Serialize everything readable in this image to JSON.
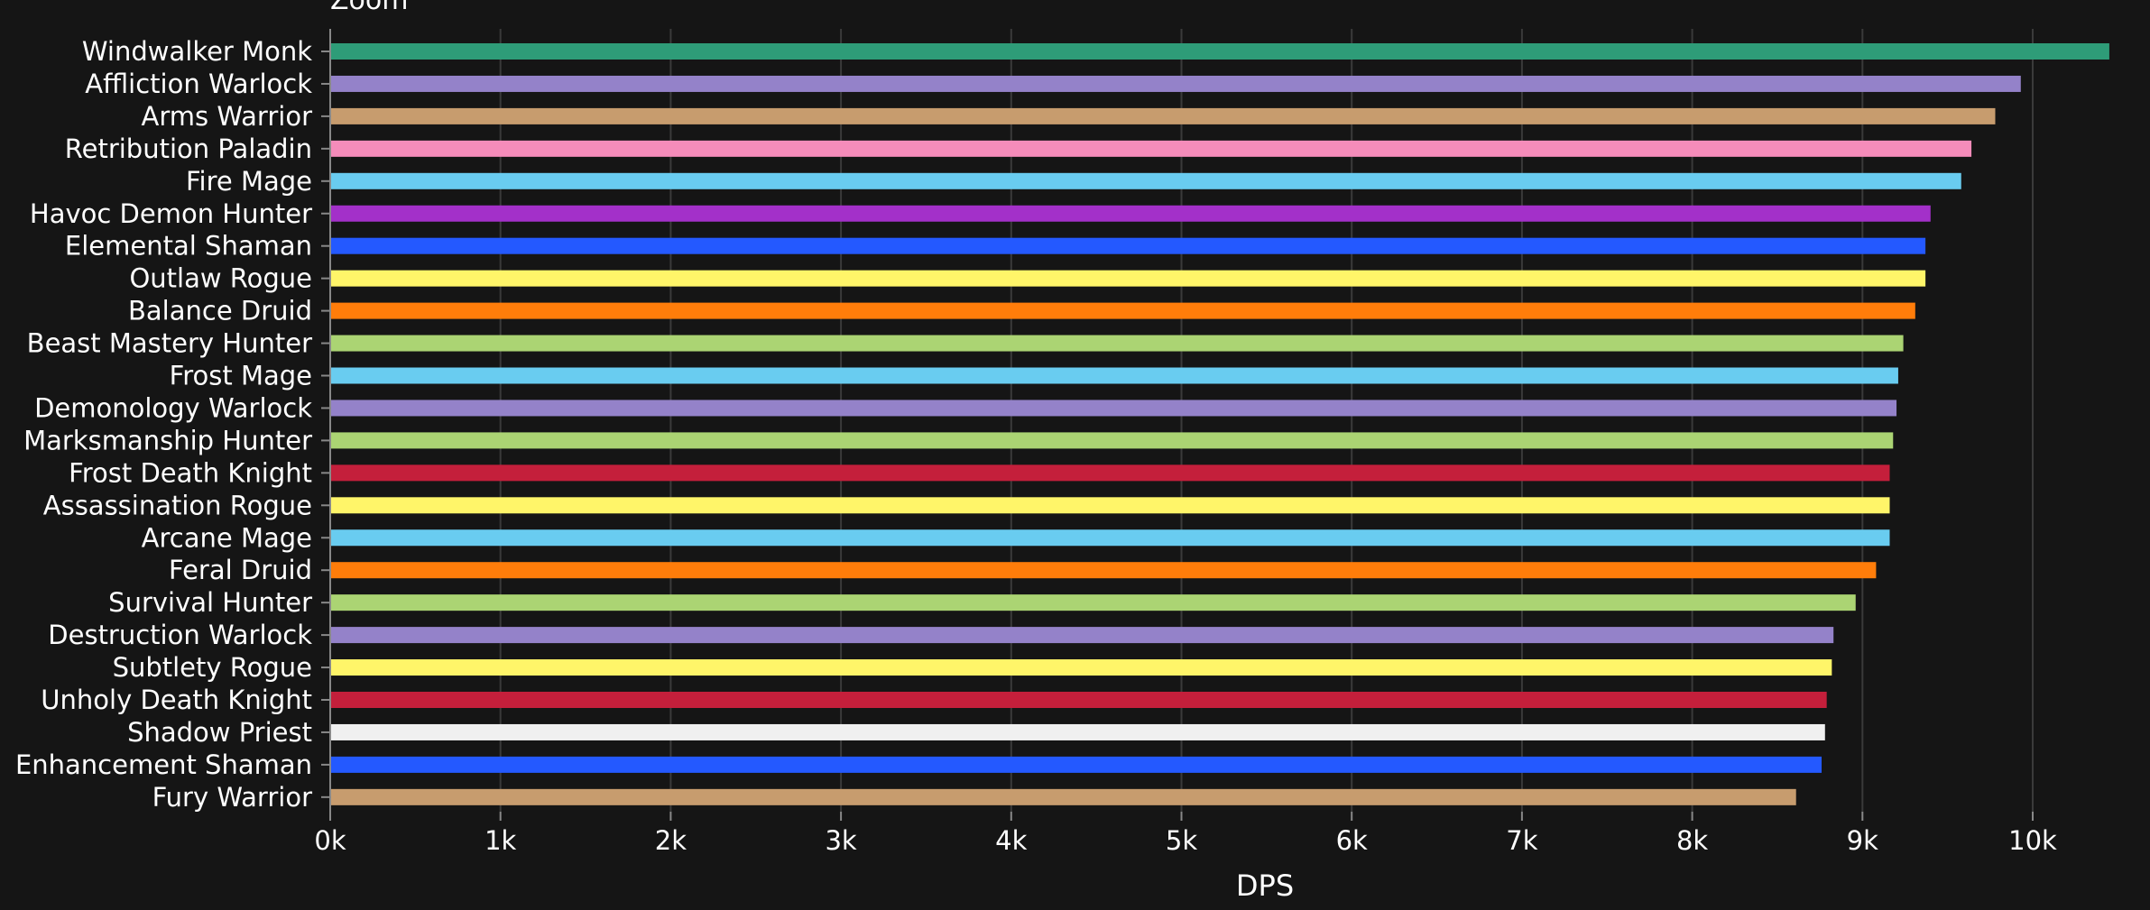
{
  "header": {
    "zoom_label": "Zoom"
  },
  "chart_data": {
    "type": "bar",
    "orientation": "horizontal",
    "title": "",
    "xlabel": "DPS",
    "ylabel": "",
    "xlim": [
      0,
      10500
    ],
    "x_ticks": [
      0,
      1000,
      2000,
      3000,
      4000,
      5000,
      6000,
      7000,
      8000,
      9000,
      10000
    ],
    "x_tick_labels": [
      "0k",
      "1k",
      "2k",
      "3k",
      "4k",
      "5k",
      "6k",
      "7k",
      "8k",
      "9k",
      "10k"
    ],
    "grid": true,
    "categories": [
      "Windwalker Monk",
      "Affliction Warlock",
      "Arms Warrior",
      "Retribution Paladin",
      "Fire Mage",
      "Havoc Demon Hunter",
      "Elemental Shaman",
      "Outlaw Rogue",
      "Balance Druid",
      "Beast Mastery Hunter",
      "Frost Mage",
      "Demonology Warlock",
      "Marksmanship Hunter",
      "Frost Death Knight",
      "Assassination Rogue",
      "Arcane Mage",
      "Feral Druid",
      "Survival Hunter",
      "Destruction Warlock",
      "Subtlety Rogue",
      "Unholy Death Knight",
      "Shadow Priest",
      "Enhancement Shaman",
      "Fury Warrior"
    ],
    "values": [
      10450,
      9930,
      9780,
      9640,
      9580,
      9400,
      9370,
      9370,
      9310,
      9240,
      9210,
      9200,
      9180,
      9160,
      9160,
      9160,
      9080,
      8960,
      8830,
      8820,
      8790,
      8780,
      8760,
      8610
    ],
    "colors": [
      "#2e9c78",
      "#9482c9",
      "#c79c6e",
      "#f58cba",
      "#69ccf0",
      "#a330c9",
      "#2459ff",
      "#fff569",
      "#ff7d0a",
      "#abd473",
      "#69ccf0",
      "#9482c9",
      "#abd473",
      "#c41f3b",
      "#fff569",
      "#69ccf0",
      "#ff7d0a",
      "#abd473",
      "#9482c9",
      "#fff569",
      "#c41f3b",
      "#f0f0f0",
      "#2459ff",
      "#c79c6e"
    ],
    "background_color": "#151515",
    "grid_color": "#3a3a3a"
  }
}
